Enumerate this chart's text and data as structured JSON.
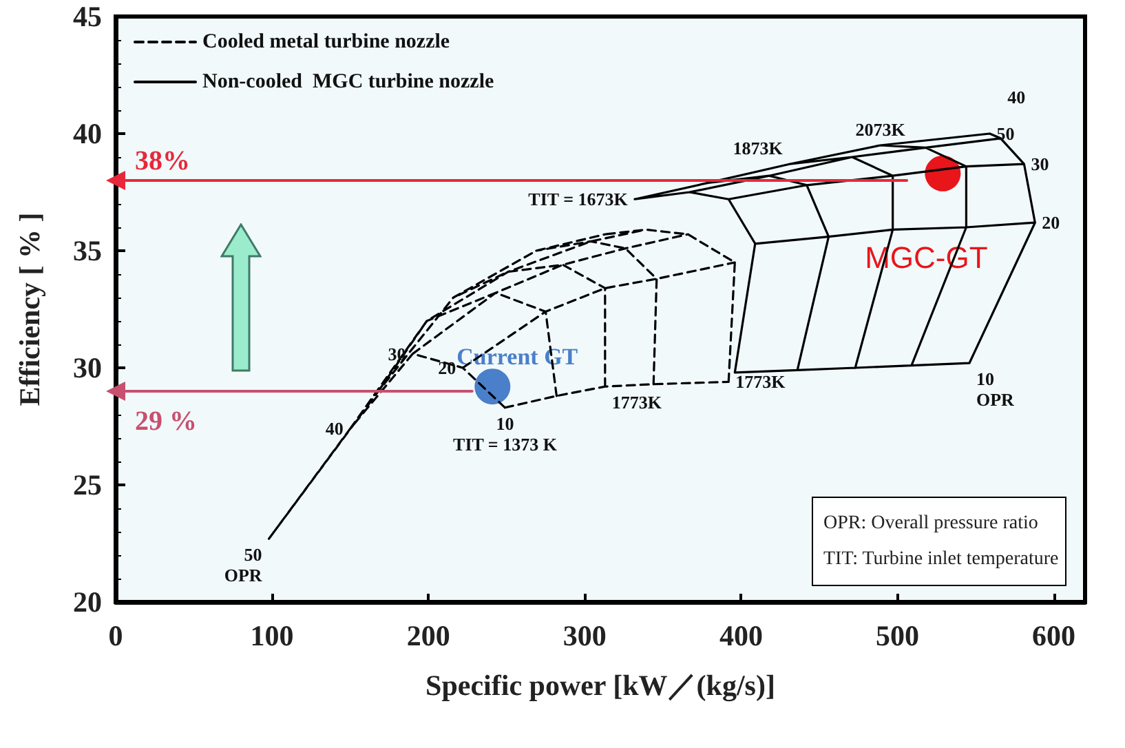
{
  "chart_data": {
    "type": "line",
    "xlabel": "Specific power [kW／(kg/s)]",
    "ylabel": "Efficiency [ % ]",
    "xlim": [
      0,
      620
    ],
    "ylim": [
      20,
      45
    ],
    "xticks": [
      0,
      100,
      200,
      300,
      400,
      500,
      600
    ],
    "yticks": [
      20,
      25,
      30,
      35,
      40,
      45
    ],
    "grid": false,
    "legend": "top left",
    "marker": "none",
    "series": [
      {
        "name": "Cooled metal turbine nozzle",
        "color": "#000000",
        "line_style": "dashed",
        "x": [
          249,
          282,
          313,
          344,
          392,
          null,
          222,
          275,
          313,
          346,
          396,
          null,
          190,
          243,
          286,
          326,
          366,
          null,
          150,
          199,
          251,
          304,
          339,
          null,
          98,
          168,
          216,
          269,
          313,
          null,
          249,
          222,
          190,
          150,
          98,
          null,
          282,
          275,
          243,
          199,
          168,
          null,
          313,
          313,
          286,
          251,
          216,
          null,
          344,
          346,
          326,
          304,
          269,
          null,
          392,
          396,
          366,
          339,
          313
        ],
        "values": [
          28.3,
          28.8,
          29.2,
          29.3,
          29.4,
          null,
          30.0,
          32.4,
          33.4,
          33.8,
          34.5,
          null,
          30.6,
          33.2,
          34.4,
          35.1,
          35.7,
          null,
          27.4,
          32.0,
          34.1,
          35.4,
          35.9,
          null,
          22.7,
          29.0,
          33.0,
          35.0,
          35.7,
          null,
          28.3,
          30.0,
          30.6,
          27.4,
          22.7,
          null,
          28.8,
          32.4,
          33.2,
          32.0,
          29.0,
          null,
          29.2,
          33.4,
          34.4,
          34.1,
          33.0,
          null,
          29.3,
          33.8,
          35.1,
          35.4,
          35.0,
          null,
          29.4,
          34.5,
          35.7,
          35.9,
          35.7
        ]
      },
      {
        "name": "Non-cooled  MGC turbine nozzle",
        "color": "#000000",
        "line_style": "solid",
        "x": [
          396,
          436,
          473,
          509,
          546,
          null,
          409,
          456,
          497,
          544,
          588,
          null,
          392,
          442,
          497,
          544,
          581,
          null,
          367,
          418,
          471,
          518,
          566,
          null,
          332,
          379,
          431,
          489,
          559,
          null,
          396,
          409,
          392,
          367,
          332,
          null,
          436,
          456,
          442,
          418,
          379,
          null,
          473,
          497,
          497,
          471,
          431,
          null,
          509,
          544,
          544,
          518,
          489,
          null,
          546,
          588,
          581,
          566,
          559
        ],
        "values": [
          29.8,
          29.9,
          30.0,
          30.1,
          30.2,
          null,
          35.3,
          35.6,
          35.9,
          36.0,
          36.2,
          null,
          37.2,
          37.8,
          38.2,
          38.6,
          38.7,
          null,
          37.5,
          38.2,
          39.0,
          39.4,
          39.8,
          null,
          37.2,
          37.9,
          38.7,
          39.5,
          40.0,
          null,
          29.8,
          35.3,
          37.2,
          37.5,
          37.2,
          null,
          29.9,
          35.6,
          37.8,
          38.2,
          37.9,
          null,
          30.0,
          35.9,
          38.2,
          39.0,
          38.7,
          null,
          30.1,
          36.0,
          38.6,
          39.4,
          39.5,
          null,
          30.2,
          36.2,
          38.7,
          39.8,
          40.0
        ]
      },
      {
        "type": "line",
        "color": "#e8283a",
        "line_style": "solid",
        "marker": "triangle",
        "x": [
          0,
          506
        ],
        "values": [
          38,
          38
        ],
        "value_labels": [
          "38%",
          null
        ]
      },
      {
        "type": "line",
        "color": "#c8506e",
        "line_style": "solid",
        "marker": "triangle",
        "x": [
          0,
          228
        ],
        "values": [
          29,
          29
        ],
        "value_labels": [
          "29 %",
          null
        ]
      },
      {
        "type": "scatter",
        "name": "Current GT",
        "color": "#4a7fc9",
        "marker": "circle",
        "x": [
          241
        ],
        "values": [
          29.2
        ]
      },
      {
        "type": "scatter",
        "name": "MGC-GT",
        "color": "#e8151a",
        "marker": "circle",
        "x": [
          529
        ],
        "values": [
          38.3
        ]
      }
    ],
    "annotations": [
      {
        "text": "TIT = 1673K",
        "x": 332,
        "y": 37.2
      },
      {
        "text": "1873K",
        "x": 431,
        "y": 38.7
      },
      {
        "text": "2073K",
        "x": 489,
        "y": 39.5
      },
      {
        "text": "50",
        "x": 559,
        "y": 40.0
      },
      {
        "text": "40",
        "x": 566,
        "y": 39.8
      },
      {
        "text": "30",
        "x": 581,
        "y": 38.7
      },
      {
        "text": "20",
        "x": 588,
        "y": 36.2
      },
      {
        "text": "10",
        "x": 546,
        "y": 30.2
      },
      {
        "text": "OPR",
        "x": 546,
        "y": 30.2
      },
      {
        "text": "30",
        "x": 190,
        "y": 30.6
      },
      {
        "text": "20",
        "x": 222,
        "y": 30.0
      },
      {
        "text": "10",
        "x": 249,
        "y": 28.3
      },
      {
        "text": "TIT = 1373 K",
        "x": 249,
        "y": 28.3
      },
      {
        "text": "1773K",
        "x": 313,
        "y": 29.2
      },
      {
        "text": "1773K",
        "x": 392,
        "y": 29.4
      },
      {
        "text": "40",
        "x": 150,
        "y": 27.4
      },
      {
        "text": "50",
        "x": 98,
        "y": 22.7
      },
      {
        "text": "OPR",
        "x": 98,
        "y": 22.7
      },
      "OPR: Overall pressure ratio",
      "TIT: Turbine inlet temperature"
    ]
  }
}
